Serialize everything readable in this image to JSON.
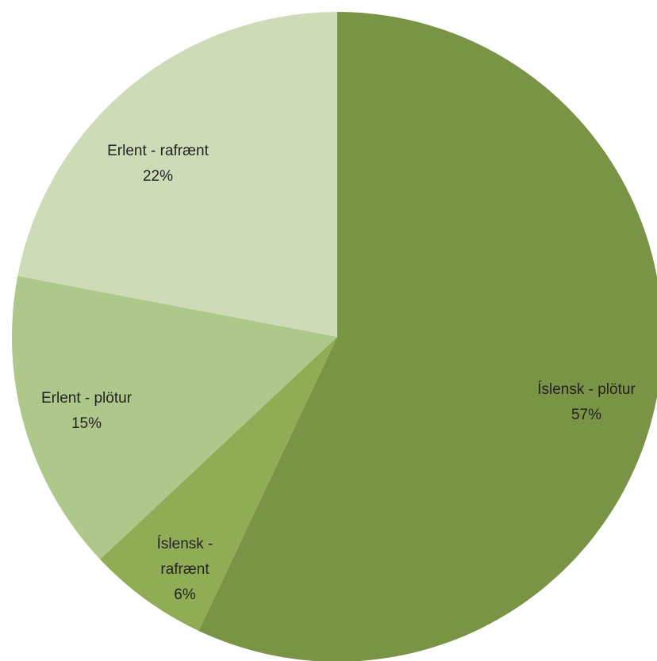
{
  "chart_data": {
    "type": "pie",
    "title": "",
    "start_angle_deg": 0,
    "direction": "clockwise",
    "slices": [
      {
        "name_lines": [
          "Íslensk - plötur"
        ],
        "label": "Íslensk - plötur",
        "value": 57,
        "percent_label": "57%",
        "color": "#7a9446"
      },
      {
        "name_lines": [
          "Íslensk -",
          "rafrænt"
        ],
        "label": "Íslensk - rafrænt",
        "value": 6,
        "percent_label": "6%",
        "color": "#90ad56"
      },
      {
        "name_lines": [
          "Erlent - plötur"
        ],
        "label": "Erlent - plötur",
        "value": 15,
        "percent_label": "15%",
        "color": "#aec78a"
      },
      {
        "name_lines": [
          "Erlent - rafrænt"
        ],
        "label": "Erlent - rafrænt",
        "value": 22,
        "percent_label": "22%",
        "color": "#cddbb7"
      }
    ]
  }
}
